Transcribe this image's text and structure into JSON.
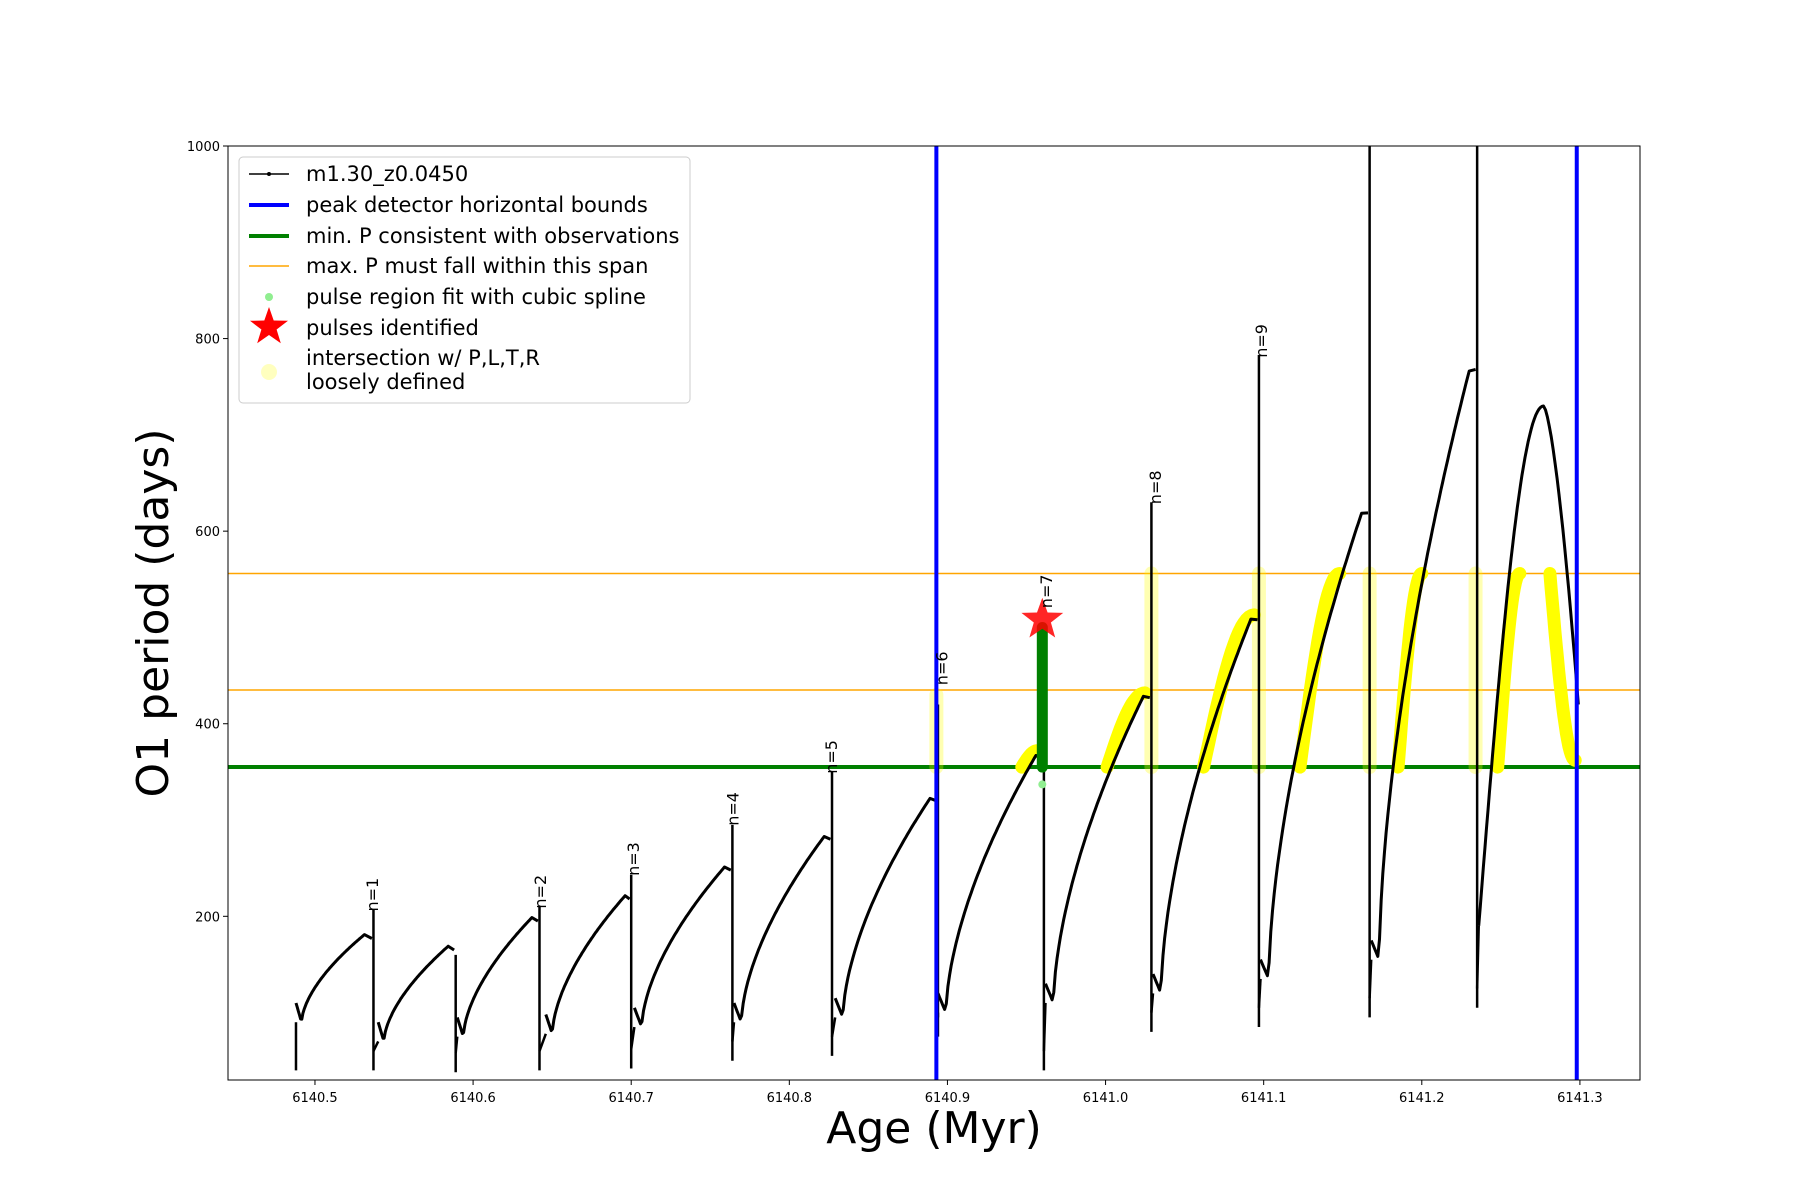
{
  "chart_data": {
    "type": "line",
    "xlabel": "Age (Myr)",
    "ylabel": "O1 period (days)",
    "xlim": [
      6140.445,
      6141.338
    ],
    "ylim": [
      30,
      1000
    ],
    "xticks": [
      {
        "value": 6140.5,
        "label": "6140.5"
      },
      {
        "value": 6140.6,
        "label": "6140.6"
      },
      {
        "value": 6140.7,
        "label": "6140.7"
      },
      {
        "value": 6140.8,
        "label": "6140.8"
      },
      {
        "value": 6140.9,
        "label": "6140.9"
      },
      {
        "value": 6141.0,
        "label": "6141.0"
      },
      {
        "value": 6141.1,
        "label": "6141.1"
      },
      {
        "value": 6141.2,
        "label": "6141.2"
      },
      {
        "value": 6141.3,
        "label": "6141.3"
      }
    ],
    "yticks": [
      {
        "value": 200,
        "label": "200"
      },
      {
        "value": 400,
        "label": "400"
      },
      {
        "value": 600,
        "label": "600"
      },
      {
        "value": 800,
        "label": "800"
      },
      {
        "value": 1000,
        "label": "1000"
      }
    ],
    "grid": false,
    "legend_position": "top-left",
    "legend": [
      {
        "key": "model",
        "label": "m1.30_z0.0450"
      },
      {
        "key": "bounds",
        "label": "peak detector horizontal bounds"
      },
      {
        "key": "minp",
        "label": "min. P consistent with observations"
      },
      {
        "key": "maxp",
        "label": "max. P must fall within this span"
      },
      {
        "key": "spline",
        "label": "pulse region fit with cubic spline"
      },
      {
        "key": "star",
        "label": "pulses identified"
      },
      {
        "key": "intersect",
        "label_lines": [
          "intersection w/ P,L,T,R",
          "loosely defined"
        ]
      }
    ],
    "series": {
      "model_track": {
        "color": "#000000",
        "cycles": [
          {
            "x0": 6140.488,
            "x1": 6140.536,
            "y0": 90,
            "ypeak": 182,
            "xpeak": 6140.532,
            "spike": 207,
            "dip": 40
          },
          {
            "x0": 6140.54,
            "x1": 6140.588,
            "y0": 70,
            "ypeak": 170,
            "xpeak": 6140.585,
            "spike": 160,
            "dip": 38
          },
          {
            "x0": 6140.59,
            "x1": 6140.641,
            "y0": 75,
            "ypeak": 200,
            "xpeak": 6140.638,
            "spike": 210,
            "dip": 40
          },
          {
            "x0": 6140.646,
            "x1": 6140.699,
            "y0": 78,
            "ypeak": 223,
            "xpeak": 6140.697,
            "spike": 243,
            "dip": 42
          },
          {
            "x0": 6140.702,
            "x1": 6140.763,
            "y0": 85,
            "ypeak": 253,
            "xpeak": 6140.76,
            "spike": 295,
            "dip": 50
          },
          {
            "x0": 6140.765,
            "x1": 6140.826,
            "y0": 90,
            "ypeak": 285,
            "xpeak": 6140.823,
            "spike": 350,
            "dip": 55
          },
          {
            "x0": 6140.829,
            "x1": 6140.893,
            "y0": 95,
            "ypeak": 325,
            "xpeak": 6140.89,
            "spike": 420,
            "dip": 75
          },
          {
            "x0": 6140.894,
            "x1": 6140.96,
            "y0": 100,
            "ypeak": 370,
            "xpeak": 6140.957,
            "spike": 505,
            "dip": 40
          },
          {
            "x0": 6140.962,
            "x1": 6141.028,
            "y0": 110,
            "ypeak": 432,
            "xpeak": 6141.025,
            "spike": 630,
            "dip": 80
          },
          {
            "x0": 6141.03,
            "x1": 6141.096,
            "y0": 120,
            "ypeak": 513,
            "xpeak": 6141.093,
            "spike": 783,
            "dip": 85
          },
          {
            "x0": 6141.098,
            "x1": 6141.166,
            "y0": 135,
            "ypeak": 624,
            "xpeak": 6141.163,
            "spike": 1000,
            "dip": 95
          },
          {
            "x0": 6141.168,
            "x1": 6141.234,
            "y0": 155,
            "ypeak": 773,
            "xpeak": 6141.231,
            "spike": 1000,
            "dip": 105
          },
          {
            "x0": 6141.236,
            "x1": 6141.299,
            "y0": 190,
            "ypeak": 730,
            "xpeak": 6141.277,
            "spike": null,
            "dip": null
          }
        ],
        "end": {
          "x": 6141.299,
          "y": 420
        }
      },
      "peak_detector_bounds": {
        "color": "#0000ff",
        "x": [
          6140.893,
          6141.298
        ]
      },
      "min_period": {
        "color": "#008000",
        "y": 355
      },
      "max_period_span": {
        "color": "#ffa500",
        "y": [
          435,
          556
        ]
      },
      "spline_fit": {
        "color": "#008000",
        "x": 6140.96,
        "y_range": [
          355,
          500
        ],
        "outliers": [
          {
            "x": 6140.96,
            "y": 337
          }
        ]
      },
      "pulses_identified": {
        "color": "#ff0000",
        "points": [
          {
            "x": 6140.96,
            "y": 508
          }
        ]
      },
      "intersection": {
        "color": "#ffff00",
        "segments": [
          {
            "x": [
              6140.947,
              6140.957
            ],
            "y": [
              355,
              372
            ]
          },
          {
            "x": [
              6141.001,
              6141.025
            ],
            "y": [
              355,
              432
            ]
          },
          {
            "x": [
              6141.062,
              6141.094
            ],
            "y": [
              355,
              513
            ]
          },
          {
            "x": [
              6141.123,
              6141.148
            ],
            "y": [
              355,
              556
            ]
          },
          {
            "x": [
              6141.185,
              6141.2
            ],
            "y": [
              355,
              556
            ]
          },
          {
            "x": [
              6141.248,
              6141.262
            ],
            "y": [
              355,
              556
            ]
          },
          {
            "x": [
              6141.281,
              6141.297
            ],
            "y": [
              556,
              362
            ]
          }
        ],
        "faint_columns": [
          {
            "x": 6140.893,
            "y": [
              355,
              430
            ]
          },
          {
            "x": 6141.029,
            "y": [
              355,
              556
            ]
          },
          {
            "x": 6141.097,
            "y": [
              355,
              556
            ]
          },
          {
            "x": 6141.167,
            "y": [
              355,
              556
            ]
          },
          {
            "x": 6141.234,
            "y": [
              355,
              556
            ]
          }
        ]
      }
    },
    "pulse_labels": [
      {
        "text": "n=1",
        "x": 6140.54,
        "y": 205
      },
      {
        "text": "n=2",
        "x": 6140.646,
        "y": 208
      },
      {
        "text": "n=3",
        "x": 6140.705,
        "y": 242
      },
      {
        "text": "n=4",
        "x": 6140.768,
        "y": 294
      },
      {
        "text": "n=5",
        "x": 6140.83,
        "y": 348
      },
      {
        "text": "n=6",
        "x": 6140.9,
        "y": 440
      },
      {
        "text": "n=7",
        "x": 6140.966,
        "y": 520
      },
      {
        "text": "n=8",
        "x": 6141.035,
        "y": 628
      },
      {
        "text": "n=9",
        "x": 6141.102,
        "y": 780
      }
    ]
  }
}
